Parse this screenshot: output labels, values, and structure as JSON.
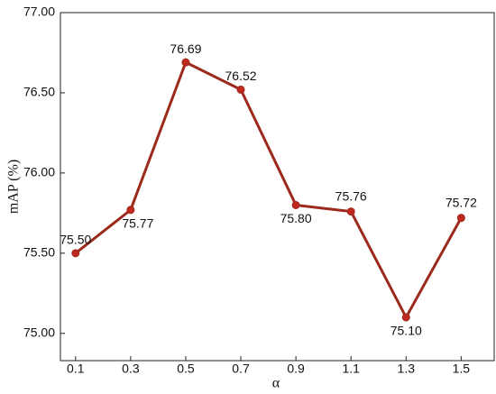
{
  "chart_data": {
    "type": "line",
    "x_label": "α",
    "y_label": "mAP (%)",
    "x": [
      0.1,
      0.3,
      0.5,
      0.7,
      0.9,
      1.1,
      1.3,
      1.5
    ],
    "values": [
      75.5,
      75.77,
      76.69,
      76.52,
      75.8,
      75.76,
      75.1,
      75.72
    ],
    "value_labels": [
      "75.50",
      "75.77",
      "76.69",
      "76.52",
      "75.80",
      "75.76",
      "75.10",
      "75.72"
    ],
    "color": "#9c2a1c",
    "marker_color": "#c0281e",
    "xlim": [
      0.045,
      1.62
    ],
    "xticks": [
      0.1,
      0.3,
      0.5,
      0.7,
      0.9,
      1.1,
      1.3,
      1.5
    ],
    "ylim": [
      74.83,
      77
    ],
    "yticks": [
      {
        "value": 75,
        "label": "75.00"
      },
      {
        "value": 75.5,
        "label": "75.50"
      },
      {
        "value": 76,
        "label": "76.00"
      },
      {
        "value": 76.5,
        "label": "76.50"
      },
      {
        "value": 77,
        "label": "77.00"
      }
    ],
    "grid": false
  }
}
